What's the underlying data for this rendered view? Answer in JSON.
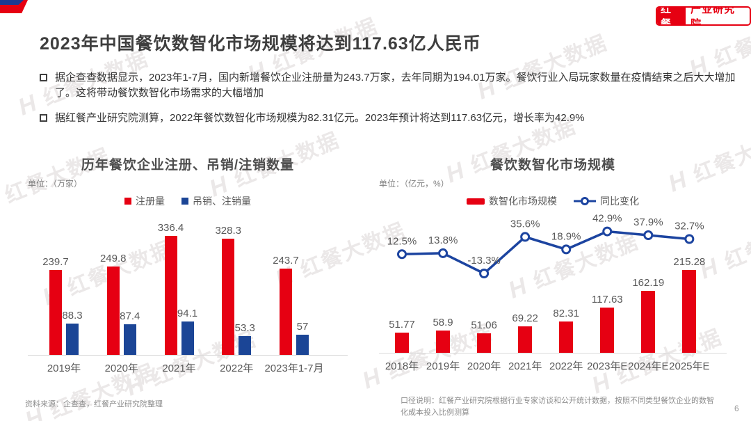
{
  "header": {
    "title": "2023年中国餐饮数智化市场规模将达到117.63亿人民币"
  },
  "logo": {
    "brand": "红餐",
    "org": "产业研究院"
  },
  "bullets": [
    {
      "text": "据企查查数据显示，2023年1-7月，国内新增餐饮企业注册量为243.7万家，去年同期为194.01万家。餐饮行业入局玩家数量在疫情结束之后大大增加了。这将带动餐饮数智化市场需求的大幅增加"
    },
    {
      "text": "据红餐产业研究院测算，2022年餐饮数智化市场规模为82.31亿元。2023年预计将达到117.63亿元，增长率为42.9%"
    }
  ],
  "watermark_text": "红餐大数据",
  "footer": {
    "source": "资料来源：企查查，红餐产业研究院整理",
    "note": "口径说明：红餐产业研究院根据行业专家访谈和公开统计数据，按照不同类型餐饮企业的数智化成本投入比例测算",
    "page_number": "6"
  },
  "colors": {
    "brand_red": "#e60012",
    "bar_blue": "#1b4596",
    "line_blue": "#1c44a0",
    "label_gray": "#595959",
    "axis_gray": "#d9d9d9"
  },
  "chart_data": [
    {
      "type": "bar",
      "title": "历年餐饮企业注册、吊销/注销数量",
      "unit_label": "单位：（万家）",
      "categories": [
        "2019年",
        "2020年",
        "2021年",
        "2022年",
        "2023年1-7月"
      ],
      "series": [
        {
          "name": "注册量",
          "color": "#e60012",
          "values": [
            239.7,
            249.8,
            336.4,
            328.3,
            243.7
          ]
        },
        {
          "name": "吊销、注销量",
          "color": "#1b4596",
          "values": [
            88.3,
            87.4,
            94.1,
            53.3,
            57
          ]
        }
      ],
      "legend_position": "top",
      "grid": false,
      "ylim": [
        0,
        360
      ]
    },
    {
      "type": "bar+line",
      "title": "餐饮数智化市场规模",
      "unit_label": "单位：（亿元，%）",
      "categories": [
        "2018年",
        "2019年",
        "2020年",
        "2021年",
        "2022年",
        "2023年E",
        "2024年E",
        "2025年E"
      ],
      "series": [
        {
          "name": "数智化市场规模",
          "kind": "bar",
          "color": "#e60012",
          "values": [
            51.77,
            58.9,
            51.06,
            69.22,
            82.31,
            117.63,
            162.19,
            215.28
          ]
        },
        {
          "name": "同比变化",
          "kind": "line",
          "color": "#1c44a0",
          "unit": "%",
          "values": [
            12.5,
            13.8,
            -13.3,
            35.6,
            18.9,
            42.9,
            37.9,
            32.7
          ],
          "labels": [
            "12.5%",
            "13.8%",
            "-13.3%",
            "35.6%",
            "18.9%",
            "42.9%",
            "37.9%",
            "32.7%"
          ]
        }
      ],
      "legend_position": "top",
      "grid": false,
      "ylim_bar": [
        0,
        363
      ],
      "ylim_line": [
        -120,
        81
      ]
    }
  ]
}
